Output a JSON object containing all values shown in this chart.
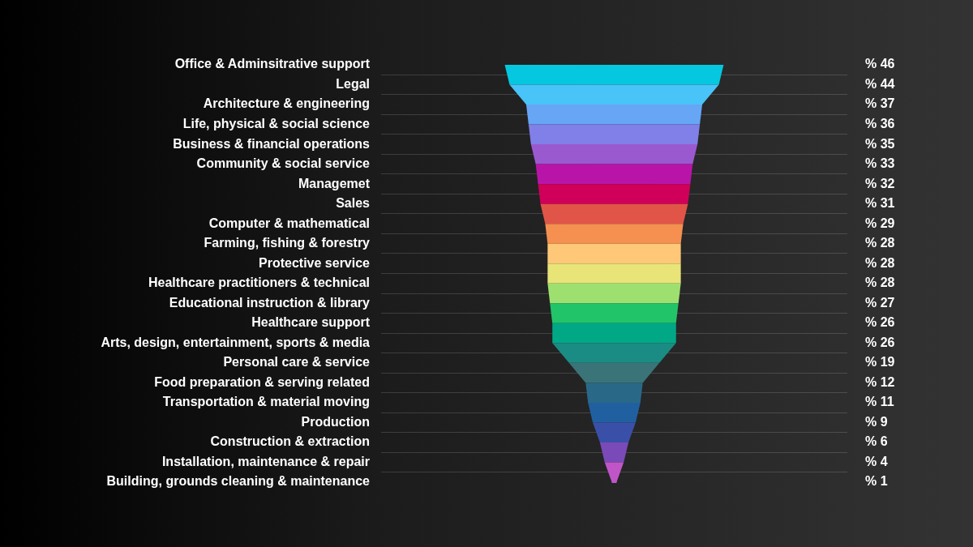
{
  "chart_data": {
    "type": "other",
    "categories": [
      "Office & Adminsitrative support",
      "Legal",
      "Architecture & engineering",
      "Life, physical & social science",
      "Business & financial operations",
      "Community & social service",
      "Managemet",
      "Sales",
      "Computer & mathematical",
      "Farming, fishing & forestry",
      "Protective service",
      "Healthcare practitioners & technical",
      "Educational instruction & library",
      "Healthcare support",
      "Arts, design, entertainment, sports & media",
      "Personal care & service",
      "Food preparation & serving related",
      "Transportation & material moving",
      "Production",
      "Construction & extraction",
      "Installation, maintenance & repair",
      "Building, grounds cleaning & maintenance"
    ],
    "values": [
      46,
      44,
      37,
      36,
      35,
      33,
      32,
      31,
      29,
      28,
      28,
      28,
      27,
      26,
      26,
      19,
      12,
      11,
      9,
      6,
      4,
      1
    ],
    "value_labels": [
      "% 46",
      "% 44",
      "% 37",
      "% 36",
      "% 35",
      "% 33",
      "% 32",
      "% 31",
      "% 29",
      "% 28",
      "% 28",
      "% 28",
      "% 27",
      "% 26",
      "% 26",
      "% 19",
      "% 12",
      "% 11",
      "% 9",
      "% 6",
      "% 4",
      "% 1"
    ],
    "colors": [
      "#05c8e0",
      "#48c4f8",
      "#66a6f5",
      "#8080e8",
      "#9b59d0",
      "#b815a8",
      "#d0005a",
      "#e05548",
      "#f59050",
      "#fec878",
      "#e8e478",
      "#9ee070",
      "#22c46a",
      "#00a886",
      "#1a8c84",
      "#3a7478",
      "#2a6888",
      "#2060a0",
      "#3a50a8",
      "#7a4ab8",
      "#c055c8",
      "#c055c8"
    ]
  }
}
